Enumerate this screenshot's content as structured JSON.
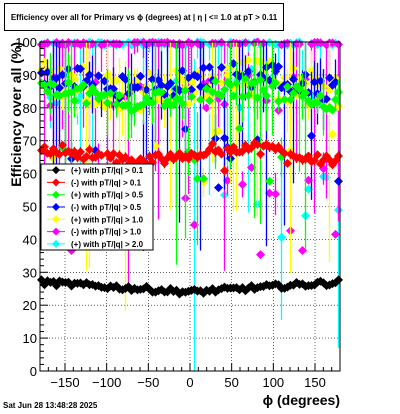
{
  "chart_data": {
    "type": "scatter",
    "title": "Efficiency over all for Primary vs ϕ (degrees) at |  η  | <= 1.0 at pT > 0.11",
    "xlabel": "ϕ (degrees)",
    "ylabel": "Efficiency over all (%)",
    "xlim": [
      -180,
      180
    ],
    "ylim": [
      0,
      100
    ],
    "x_ticks": [
      -150,
      -100,
      -50,
      0,
      50,
      100,
      150
    ],
    "x_tick_labels": [
      "−150",
      "−100",
      "−50",
      "0",
      "50",
      "100",
      "150"
    ],
    "y_ticks": [
      0,
      10,
      20,
      30,
      40,
      50,
      60,
      70,
      80,
      90,
      100
    ],
    "grid": true,
    "legend_position": "middle-left",
    "series": [
      {
        "name": "(+) with pT/|q| > 0.1",
        "color": "#000000",
        "base": 24,
        "amp": 3,
        "noise": 0.8,
        "shape": "v"
      },
      {
        "name": "(-) with pT/|q| > 0.1",
        "color": "#ff0000",
        "base": 66,
        "amp": 2,
        "noise": 1.8,
        "shape": "flat"
      },
      {
        "name": "(+) with pT/|q| > 0.5",
        "color": "#00ff00",
        "base": 84,
        "amp": 2,
        "noise": 3,
        "shape": "flat"
      },
      {
        "name": "(-) with pT/|q| > 0.5",
        "color": "#0000ff",
        "base": 88,
        "amp": 2,
        "noise": 4,
        "shape": "flat"
      },
      {
        "name": "(+) with pT/|q| > 1.0",
        "color": "#ffff00",
        "base": 87,
        "amp": 2,
        "noise": 6,
        "shape": "flat"
      },
      {
        "name": "(-) with pT/|q| > 1.0",
        "color": "#ff00ff",
        "base": 96,
        "amp": 1,
        "noise": 6,
        "shape": "top"
      },
      {
        "name": "(+) with pT/|q| > 2.0",
        "color": "#00ffff",
        "base": 98,
        "amp": 1,
        "noise": 5,
        "shape": "top"
      }
    ]
  },
  "footer": "Sat Jun 28 13:48:28 2025"
}
